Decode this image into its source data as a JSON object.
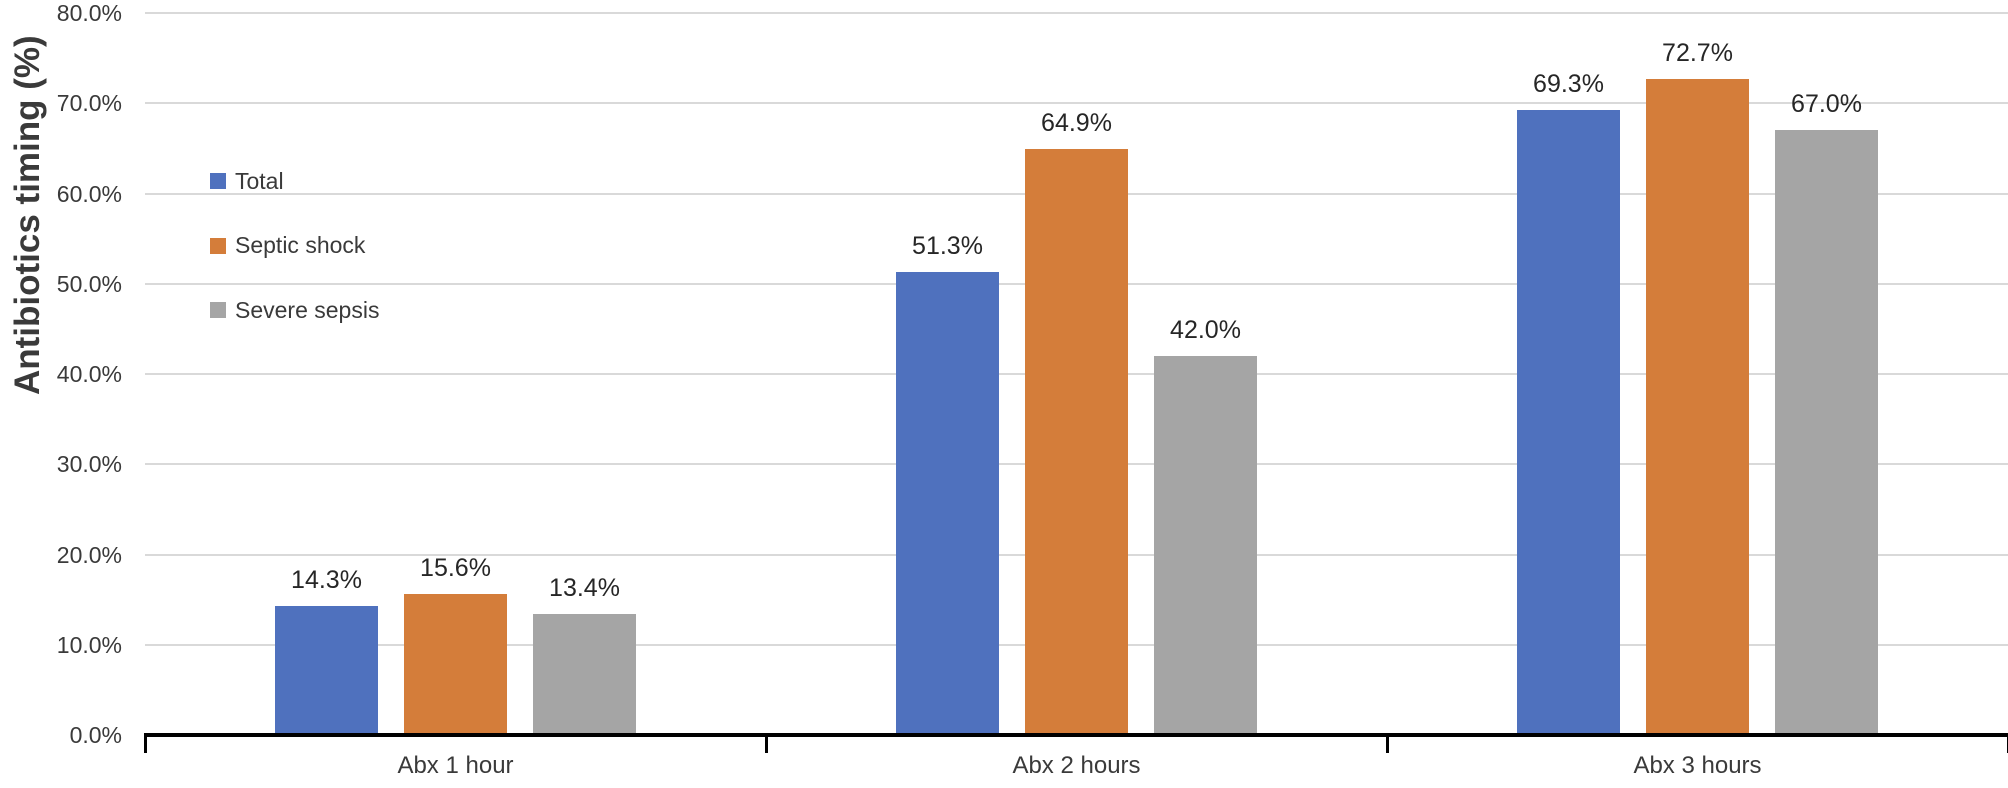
{
  "chart_data": {
    "type": "bar",
    "title": "",
    "ylabel": "Antibiotics timing (%)",
    "xlabel": "",
    "categories": [
      "Abx 1 hour",
      "Abx 2 hours",
      "Abx 3 hours"
    ],
    "series": [
      {
        "name": "Total",
        "color": "#4f71be",
        "values": [
          14.3,
          51.3,
          69.3
        ],
        "labels": [
          "14.3%",
          "51.3%",
          "69.3%"
        ]
      },
      {
        "name": "Septic shock",
        "color": "#d47d3a",
        "values": [
          15.6,
          64.9,
          72.7
        ],
        "labels": [
          "15.6%",
          "64.9%",
          "72.7%"
        ]
      },
      {
        "name": "Severe sepsis",
        "color": "#a5a5a5",
        "values": [
          13.4,
          42.0,
          67.0
        ],
        "labels": [
          "13.4%",
          "42.0%",
          "67.0%"
        ]
      }
    ],
    "ylim": [
      0,
      80
    ],
    "ytick_step": 10,
    "ytick_labels": [
      "0.0%",
      "10.0%",
      "20.0%",
      "30.0%",
      "40.0%",
      "50.0%",
      "60.0%",
      "70.0%",
      "80.0%"
    ],
    "grid": true,
    "legend_position": "inside-top-left",
    "colors": {
      "gridline": "#d9d9d9",
      "axis_line": "#000000",
      "tick_text": "#3a3a3a",
      "data_label_text": "#262626"
    }
  }
}
